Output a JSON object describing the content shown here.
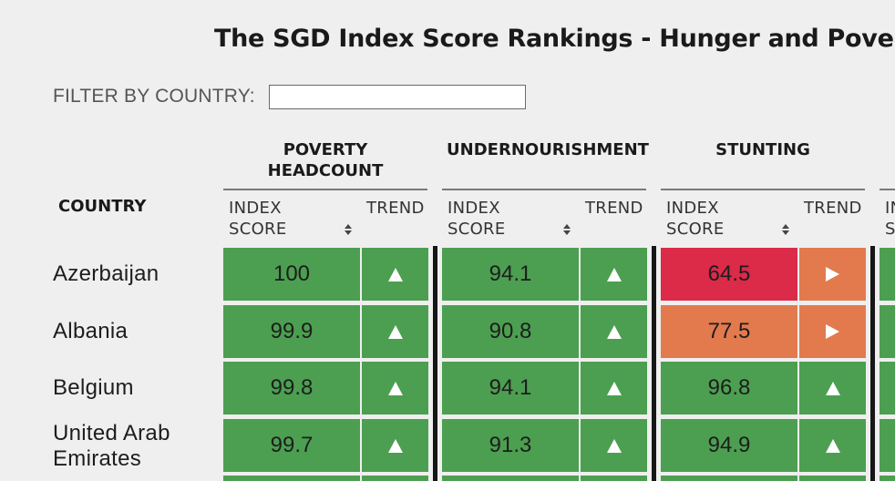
{
  "title": "The SGD Index Score Rankings - Hunger and Poverty",
  "filter": {
    "label": "FILTER BY COUNTRY:",
    "value": "",
    "placeholder": ""
  },
  "columns": {
    "country": "COUNTRY",
    "groups": [
      {
        "name": "POVERTY HEADCOUNT",
        "name_line1": "POVERTY",
        "name_line2": "HEADCOUNT"
      },
      {
        "name": "UNDERNOURISHMENT"
      },
      {
        "name": "STUNTING"
      },
      {
        "name": ""
      }
    ],
    "index_line1": "INDEX",
    "index_line2": "SCORE",
    "trend": "TREND",
    "partial_index_line1": "IN",
    "partial_index_line2": "S"
  },
  "colors": {
    "green": "#4c9f50",
    "red": "#dc2a49",
    "orange": "#e27a4e",
    "background": "#efefef"
  },
  "rows": [
    {
      "country_line1": "Azerbaijan",
      "country_line2": "",
      "poverty": {
        "score": "100",
        "trend": "up",
        "color": "green",
        "trend_color": "green"
      },
      "undernourishment": {
        "score": "94.1",
        "trend": "up",
        "color": "green",
        "trend_color": "green"
      },
      "stunting": {
        "score": "64.5",
        "trend": "right",
        "color": "red",
        "trend_color": "orange"
      }
    },
    {
      "country_line1": "Albania",
      "country_line2": "",
      "poverty": {
        "score": "99.9",
        "trend": "up",
        "color": "green",
        "trend_color": "green"
      },
      "undernourishment": {
        "score": "90.8",
        "trend": "up",
        "color": "green",
        "trend_color": "green"
      },
      "stunting": {
        "score": "77.5",
        "trend": "right",
        "color": "orange",
        "trend_color": "orange"
      }
    },
    {
      "country_line1": "Belgium",
      "country_line2": "",
      "poverty": {
        "score": "99.8",
        "trend": "up",
        "color": "green",
        "trend_color": "green"
      },
      "undernourishment": {
        "score": "94.1",
        "trend": "up",
        "color": "green",
        "trend_color": "green"
      },
      "stunting": {
        "score": "96.8",
        "trend": "up",
        "color": "green",
        "trend_color": "green"
      }
    },
    {
      "country_line1": "United Arab",
      "country_line2": "Emirates",
      "poverty": {
        "score": "99.7",
        "trend": "up",
        "color": "green",
        "trend_color": "green"
      },
      "undernourishment": {
        "score": "91.3",
        "trend": "up",
        "color": "green",
        "trend_color": "green"
      },
      "stunting": {
        "score": "94.9",
        "trend": "up",
        "color": "green",
        "trend_color": "green"
      }
    }
  ]
}
